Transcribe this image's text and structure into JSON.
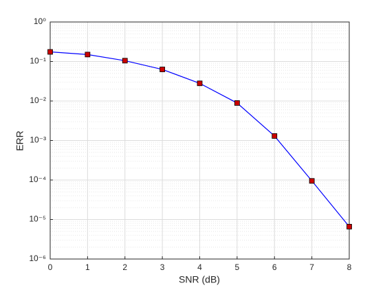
{
  "chart_data": {
    "type": "line",
    "xlabel": "SNR (dB)",
    "ylabel": "ERR",
    "x": [
      0,
      1,
      2,
      3,
      4,
      5,
      6,
      7,
      8
    ],
    "series": [
      {
        "values": [
          0.175,
          0.15,
          0.105,
          0.063,
          0.028,
          0.0089,
          0.0013,
          9.5e-05,
          6.6e-06
        ],
        "color": "#0000ff",
        "marker_color": "#cc0000"
      }
    ],
    "xlim": [
      0,
      8
    ],
    "xticks": [
      0,
      1,
      2,
      3,
      4,
      5,
      6,
      7,
      8
    ],
    "ylim": [
      1e-06,
      1
    ],
    "log_y": true,
    "yticks": [
      {
        "value": 1e-06,
        "label": "10⁻⁶"
      },
      {
        "value": 1e-05,
        "label": "10⁻⁵"
      },
      {
        "value": 0.0001,
        "label": "10⁻⁴"
      },
      {
        "value": 0.001,
        "label": "10⁻³"
      },
      {
        "value": 0.01,
        "label": "10⁻²"
      },
      {
        "value": 0.1,
        "label": "10⁻¹"
      },
      {
        "value": 1,
        "label": "10⁰"
      }
    ],
    "grid": true,
    "minor_grid": true
  }
}
